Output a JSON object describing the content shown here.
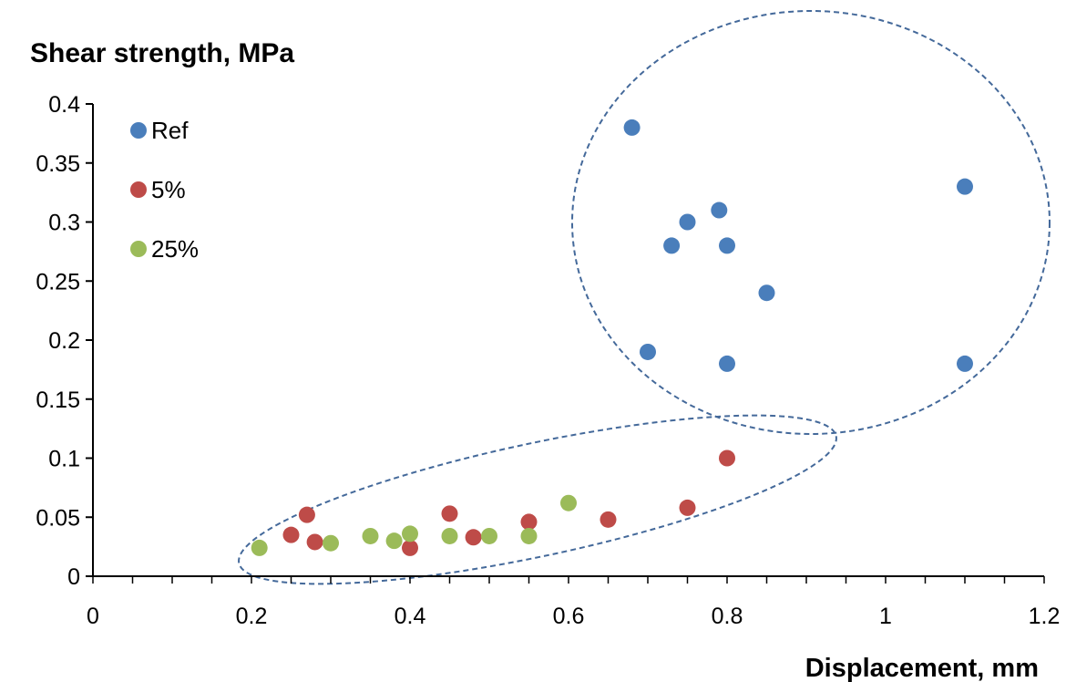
{
  "chart_data": {
    "type": "scatter",
    "title": "Shear strength, MPa",
    "xlabel": "Displacement, mm",
    "ylabel": "",
    "xlim": [
      0,
      1.2
    ],
    "ylim": [
      0,
      0.4
    ],
    "x_ticks": [
      "0",
      "0.2",
      "0.4",
      "0.6",
      "0.8",
      "1",
      "1.2"
    ],
    "y_ticks": [
      "0",
      "0.05",
      "0.1",
      "0.15",
      "0.2",
      "0.25",
      "0.3",
      "0.35",
      "0.4"
    ],
    "grid": false,
    "legend_position": "top-left",
    "series": [
      {
        "name": "Ref",
        "color": "#4a7ebb",
        "points": [
          [
            0.68,
            0.38
          ],
          [
            1.1,
            0.33
          ],
          [
            0.79,
            0.31
          ],
          [
            0.75,
            0.3
          ],
          [
            0.73,
            0.28
          ],
          [
            0.8,
            0.28
          ],
          [
            0.85,
            0.24
          ],
          [
            0.7,
            0.19
          ],
          [
            0.8,
            0.18
          ],
          [
            1.1,
            0.18
          ]
        ]
      },
      {
        "name": "5%",
        "color": "#be4b48",
        "points": [
          [
            0.27,
            0.052
          ],
          [
            0.25,
            0.035
          ],
          [
            0.28,
            0.029
          ],
          [
            0.4,
            0.024
          ],
          [
            0.45,
            0.053
          ],
          [
            0.48,
            0.033
          ],
          [
            0.55,
            0.046
          ],
          [
            0.65,
            0.048
          ],
          [
            0.75,
            0.058
          ],
          [
            0.8,
            0.1
          ]
        ]
      },
      {
        "name": "25%",
        "color": "#9bbb59",
        "points": [
          [
            0.21,
            0.024
          ],
          [
            0.3,
            0.028
          ],
          [
            0.35,
            0.034
          ],
          [
            0.38,
            0.03
          ],
          [
            0.4,
            0.036
          ],
          [
            0.45,
            0.034
          ],
          [
            0.5,
            0.034
          ],
          [
            0.55,
            0.034
          ],
          [
            0.6,
            0.062
          ]
        ]
      }
    ],
    "annotations": [
      {
        "type": "dashed-ellipse",
        "around": "Ref",
        "color": "#44699a"
      },
      {
        "type": "dashed-ellipse",
        "around": "5% and 25%",
        "color": "#44699a"
      }
    ],
    "colors": {
      "axis": "#000000",
      "annotation": "#44699a"
    }
  }
}
